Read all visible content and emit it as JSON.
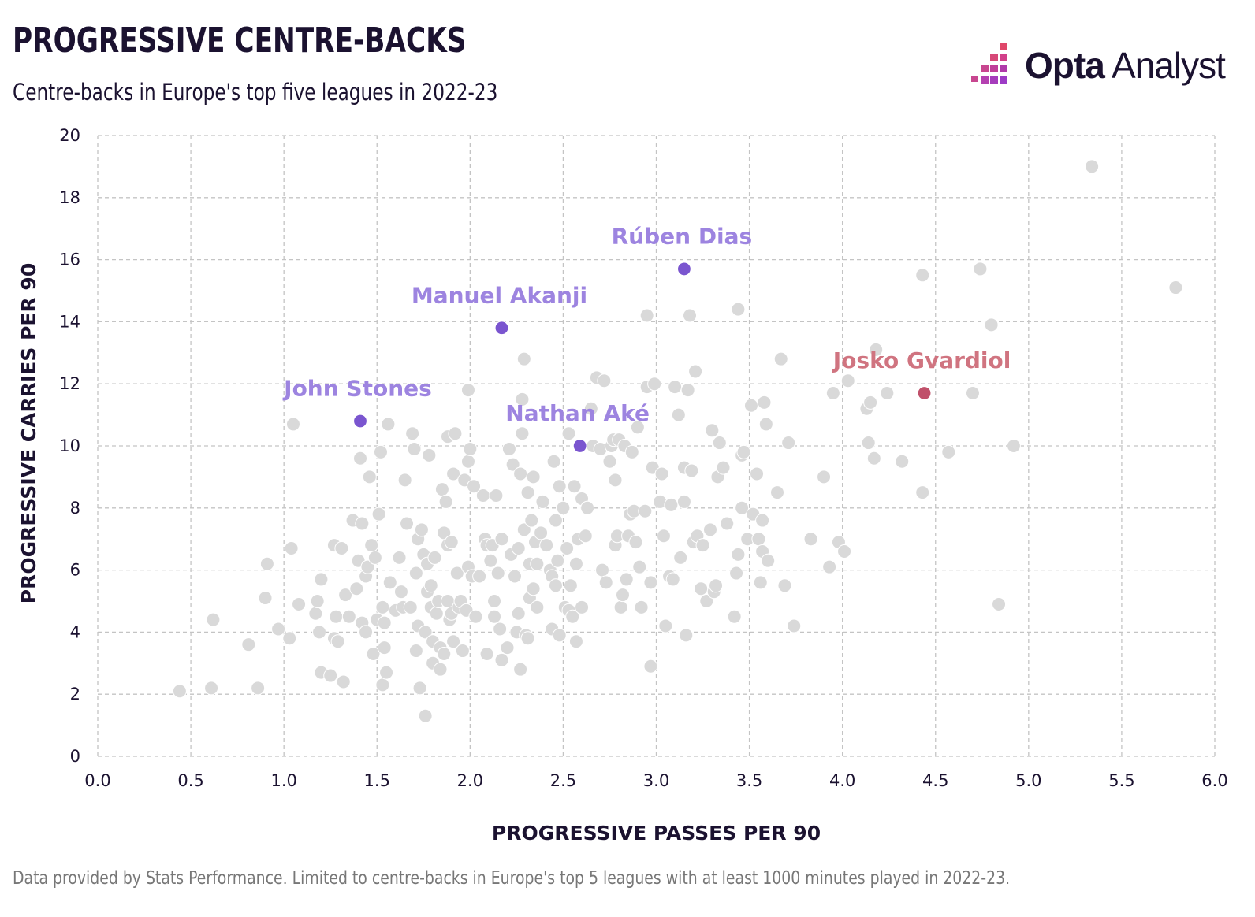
{
  "header": {
    "title": "PROGRESSIVE CENTRE-BACKS",
    "subtitle": "Centre-backs in Europe's top five leagues in 2022-23"
  },
  "logo": {
    "brand_bold": "Opta",
    "brand_light": "Analyst"
  },
  "footnote": "Data provided by Stats Performance. Limited to centre-backs in Europe's top 5 leagues with at least 1000 minutes played in 2022-23.",
  "colors": {
    "background_point": "#d9d9d9",
    "highlight_city": "#7a55cf",
    "highlight_city_label": "#9d84e0",
    "highlight_gvardiol": "#c0506a",
    "highlight_gvardiol_label": "#d07480",
    "grid": "#c4c4c4",
    "text": "#1b1230"
  },
  "chart_data": {
    "type": "scatter",
    "title": "PROGRESSIVE CENTRE-BACKS",
    "subtitle": "Centre-backs in Europe's top five leagues in 2022-23",
    "xlabel": "PROGRESSIVE PASSES PER 90",
    "ylabel": "PROGRESSIVE CARRIES PER 90",
    "xlim": [
      0.0,
      6.0
    ],
    "ylim": [
      0,
      20
    ],
    "x_ticks": [
      "0.0",
      "0.5",
      "1.0",
      "1.5",
      "2.0",
      "2.5",
      "3.0",
      "3.5",
      "4.0",
      "4.5",
      "5.0",
      "5.5",
      "6.0"
    ],
    "y_ticks": [
      "0",
      "2",
      "4",
      "6",
      "8",
      "10",
      "12",
      "14",
      "16",
      "18",
      "20"
    ],
    "grid": true,
    "highlighted": [
      {
        "name": "Rúben Dias",
        "x": 3.15,
        "y": 15.7,
        "group": "city"
      },
      {
        "name": "Manuel Akanji",
        "x": 2.17,
        "y": 13.8,
        "group": "city"
      },
      {
        "name": "John Stones",
        "x": 1.41,
        "y": 10.8,
        "group": "city"
      },
      {
        "name": "Nathan Aké",
        "x": 2.59,
        "y": 10.0,
        "group": "city"
      },
      {
        "name": "Josko Gvardiol",
        "x": 4.44,
        "y": 11.7,
        "group": "gvardiol"
      }
    ],
    "points": [
      [
        0.44,
        2.1
      ],
      [
        0.61,
        2.2
      ],
      [
        0.62,
        4.4
      ],
      [
        0.81,
        3.6
      ],
      [
        0.86,
        2.2
      ],
      [
        0.9,
        5.1
      ],
      [
        0.91,
        6.2
      ],
      [
        0.97,
        4.1
      ],
      [
        1.03,
        3.8
      ],
      [
        1.04,
        6.7
      ],
      [
        1.05,
        10.7
      ],
      [
        1.08,
        4.9
      ],
      [
        1.17,
        4.6
      ],
      [
        1.18,
        5.0
      ],
      [
        1.19,
        4.0
      ],
      [
        1.2,
        5.7
      ],
      [
        1.2,
        2.7
      ],
      [
        1.25,
        2.6
      ],
      [
        1.27,
        3.8
      ],
      [
        1.27,
        6.8
      ],
      [
        1.28,
        4.5
      ],
      [
        1.29,
        3.7
      ],
      [
        1.31,
        6.7
      ],
      [
        1.32,
        2.4
      ],
      [
        1.33,
        5.2
      ],
      [
        1.35,
        4.5
      ],
      [
        1.37,
        7.6
      ],
      [
        1.39,
        5.4
      ],
      [
        1.4,
        6.3
      ],
      [
        1.41,
        9.6
      ],
      [
        1.42,
        7.5
      ],
      [
        1.42,
        4.3
      ],
      [
        1.44,
        5.8
      ],
      [
        1.44,
        4.0
      ],
      [
        1.45,
        6.1
      ],
      [
        1.46,
        9.0
      ],
      [
        1.47,
        6.8
      ],
      [
        1.48,
        3.3
      ],
      [
        1.49,
        6.4
      ],
      [
        1.5,
        4.4
      ],
      [
        1.51,
        7.8
      ],
      [
        1.52,
        9.8
      ],
      [
        1.53,
        2.3
      ],
      [
        1.53,
        4.8
      ],
      [
        1.54,
        3.5
      ],
      [
        1.54,
        4.3
      ],
      [
        1.55,
        2.7
      ],
      [
        1.56,
        10.7
      ],
      [
        1.57,
        5.6
      ],
      [
        1.6,
        4.7
      ],
      [
        1.62,
        6.4
      ],
      [
        1.63,
        5.3
      ],
      [
        1.64,
        4.8
      ],
      [
        1.65,
        8.9
      ],
      [
        1.66,
        7.5
      ],
      [
        1.68,
        4.8
      ],
      [
        1.69,
        10.4
      ],
      [
        1.7,
        9.9
      ],
      [
        1.71,
        5.9
      ],
      [
        1.71,
        3.4
      ],
      [
        1.72,
        4.2
      ],
      [
        1.72,
        7.0
      ],
      [
        1.73,
        2.2
      ],
      [
        1.74,
        7.3
      ],
      [
        1.75,
        6.5
      ],
      [
        1.76,
        4.0
      ],
      [
        1.76,
        1.3
      ],
      [
        1.77,
        5.3
      ],
      [
        1.77,
        6.2
      ],
      [
        1.78,
        9.7
      ],
      [
        1.79,
        5.5
      ],
      [
        1.79,
        4.8
      ],
      [
        1.8,
        3.7
      ],
      [
        1.8,
        3.0
      ],
      [
        1.81,
        6.4
      ],
      [
        1.82,
        4.6
      ],
      [
        1.83,
        5.0
      ],
      [
        1.84,
        3.5
      ],
      [
        1.84,
        2.8
      ],
      [
        1.85,
        8.6
      ],
      [
        1.86,
        7.2
      ],
      [
        1.86,
        3.3
      ],
      [
        1.87,
        8.2
      ],
      [
        1.88,
        6.8
      ],
      [
        1.88,
        5.0
      ],
      [
        1.88,
        10.3
      ],
      [
        1.89,
        4.4
      ],
      [
        1.9,
        4.6
      ],
      [
        1.9,
        6.9
      ],
      [
        1.91,
        9.1
      ],
      [
        1.91,
        3.7
      ],
      [
        1.92,
        10.4
      ],
      [
        1.93,
        5.9
      ],
      [
        1.94,
        4.8
      ],
      [
        1.95,
        5.0
      ],
      [
        1.96,
        3.4
      ],
      [
        1.97,
        8.9
      ],
      [
        1.98,
        4.7
      ],
      [
        1.99,
        11.8
      ],
      [
        1.99,
        9.5
      ],
      [
        1.99,
        6.1
      ],
      [
        2.0,
        9.9
      ],
      [
        2.01,
        5.8
      ],
      [
        2.02,
        8.7
      ],
      [
        2.03,
        4.5
      ],
      [
        2.05,
        5.8
      ],
      [
        2.07,
        8.4
      ],
      [
        2.08,
        7.0
      ],
      [
        2.09,
        6.8
      ],
      [
        2.09,
        3.3
      ],
      [
        2.11,
        6.3
      ],
      [
        2.12,
        6.8
      ],
      [
        2.13,
        4.5
      ],
      [
        2.13,
        5.0
      ],
      [
        2.14,
        8.4
      ],
      [
        2.15,
        5.9
      ],
      [
        2.16,
        4.1
      ],
      [
        2.17,
        3.1
      ],
      [
        2.17,
        7.0
      ],
      [
        2.2,
        3.5
      ],
      [
        2.21,
        9.9
      ],
      [
        2.22,
        6.5
      ],
      [
        2.23,
        9.4
      ],
      [
        2.24,
        5.8
      ],
      [
        2.25,
        4.0
      ],
      [
        2.26,
        6.7
      ],
      [
        2.26,
        4.6
      ],
      [
        2.27,
        2.8
      ],
      [
        2.27,
        9.1
      ],
      [
        2.28,
        11.5
      ],
      [
        2.28,
        10.4
      ],
      [
        2.29,
        12.8
      ],
      [
        2.29,
        7.3
      ],
      [
        2.3,
        3.9
      ],
      [
        2.31,
        8.5
      ],
      [
        2.31,
        3.8
      ],
      [
        2.32,
        6.2
      ],
      [
        2.32,
        5.1
      ],
      [
        2.33,
        7.6
      ],
      [
        2.34,
        9.0
      ],
      [
        2.34,
        5.4
      ],
      [
        2.35,
        6.9
      ],
      [
        2.36,
        4.8
      ],
      [
        2.36,
        6.2
      ],
      [
        2.38,
        7.2
      ],
      [
        2.39,
        8.2
      ],
      [
        2.41,
        6.8
      ],
      [
        2.43,
        6.0
      ],
      [
        2.44,
        4.1
      ],
      [
        2.44,
        5.8
      ],
      [
        2.45,
        9.5
      ],
      [
        2.46,
        5.5
      ],
      [
        2.46,
        7.6
      ],
      [
        2.47,
        6.3
      ],
      [
        2.48,
        8.7
      ],
      [
        2.48,
        3.9
      ],
      [
        2.5,
        8.0
      ],
      [
        2.51,
        4.8
      ],
      [
        2.52,
        6.7
      ],
      [
        2.53,
        10.4
      ],
      [
        2.53,
        4.7
      ],
      [
        2.54,
        5.5
      ],
      [
        2.55,
        4.5
      ],
      [
        2.56,
        8.7
      ],
      [
        2.57,
        3.7
      ],
      [
        2.57,
        6.2
      ],
      [
        2.58,
        7.0
      ],
      [
        2.6,
        8.3
      ],
      [
        2.6,
        4.8
      ],
      [
        2.62,
        7.1
      ],
      [
        2.63,
        8.0
      ],
      [
        2.65,
        11.2
      ],
      [
        2.66,
        10.0
      ],
      [
        2.68,
        12.2
      ],
      [
        2.7,
        9.9
      ],
      [
        2.71,
        6.0
      ],
      [
        2.72,
        12.1
      ],
      [
        2.73,
        5.6
      ],
      [
        2.75,
        9.5
      ],
      [
        2.76,
        10.0
      ],
      [
        2.77,
        10.2
      ],
      [
        2.78,
        6.8
      ],
      [
        2.78,
        8.9
      ],
      [
        2.79,
        7.1
      ],
      [
        2.8,
        10.2
      ],
      [
        2.81,
        4.8
      ],
      [
        2.82,
        5.2
      ],
      [
        2.83,
        10.0
      ],
      [
        2.84,
        5.7
      ],
      [
        2.85,
        7.1
      ],
      [
        2.86,
        7.8
      ],
      [
        2.87,
        9.8
      ],
      [
        2.88,
        7.9
      ],
      [
        2.89,
        6.9
      ],
      [
        2.9,
        10.6
      ],
      [
        2.91,
        6.1
      ],
      [
        2.92,
        4.8
      ],
      [
        2.94,
        7.9
      ],
      [
        2.95,
        11.9
      ],
      [
        2.95,
        14.2
      ],
      [
        2.97,
        5.6
      ],
      [
        2.97,
        2.9
      ],
      [
        2.98,
        9.3
      ],
      [
        2.99,
        12.0
      ],
      [
        3.02,
        8.2
      ],
      [
        3.03,
        9.1
      ],
      [
        3.04,
        7.1
      ],
      [
        3.05,
        4.2
      ],
      [
        3.07,
        5.8
      ],
      [
        3.08,
        8.1
      ],
      [
        3.09,
        5.7
      ],
      [
        3.1,
        11.9
      ],
      [
        3.12,
        11.0
      ],
      [
        3.13,
        6.4
      ],
      [
        3.15,
        9.3
      ],
      [
        3.15,
        8.2
      ],
      [
        3.16,
        3.9
      ],
      [
        3.17,
        11.8
      ],
      [
        3.18,
        14.2
      ],
      [
        3.19,
        9.2
      ],
      [
        3.2,
        6.9
      ],
      [
        3.21,
        12.4
      ],
      [
        3.22,
        7.1
      ],
      [
        3.24,
        5.4
      ],
      [
        3.25,
        6.8
      ],
      [
        3.27,
        5.0
      ],
      [
        3.29,
        7.3
      ],
      [
        3.3,
        10.5
      ],
      [
        3.31,
        5.3
      ],
      [
        3.32,
        5.5
      ],
      [
        3.33,
        9.0
      ],
      [
        3.34,
        10.1
      ],
      [
        3.36,
        9.3
      ],
      [
        3.38,
        7.5
      ],
      [
        3.42,
        4.5
      ],
      [
        3.43,
        5.9
      ],
      [
        3.44,
        6.5
      ],
      [
        3.44,
        14.4
      ],
      [
        3.46,
        9.7
      ],
      [
        3.46,
        8.0
      ],
      [
        3.47,
        9.8
      ],
      [
        3.49,
        7.0
      ],
      [
        3.51,
        11.3
      ],
      [
        3.52,
        7.8
      ],
      [
        3.54,
        9.1
      ],
      [
        3.55,
        7.0
      ],
      [
        3.56,
        5.6
      ],
      [
        3.57,
        7.6
      ],
      [
        3.57,
        6.6
      ],
      [
        3.58,
        11.4
      ],
      [
        3.59,
        10.7
      ],
      [
        3.6,
        6.3
      ],
      [
        3.65,
        8.5
      ],
      [
        3.67,
        12.8
      ],
      [
        3.69,
        5.5
      ],
      [
        3.71,
        10.1
      ],
      [
        3.74,
        4.2
      ],
      [
        3.83,
        7.0
      ],
      [
        3.9,
        9.0
      ],
      [
        3.93,
        6.1
      ],
      [
        3.95,
        11.7
      ],
      [
        3.98,
        6.9
      ],
      [
        4.01,
        6.6
      ],
      [
        4.03,
        12.1
      ],
      [
        4.13,
        11.2
      ],
      [
        4.14,
        10.1
      ],
      [
        4.15,
        11.4
      ],
      [
        4.17,
        9.6
      ],
      [
        4.18,
        13.1
      ],
      [
        4.24,
        11.7
      ],
      [
        4.32,
        9.5
      ],
      [
        4.43,
        15.5
      ],
      [
        4.43,
        8.5
      ],
      [
        4.57,
        9.8
      ],
      [
        4.7,
        11.7
      ],
      [
        4.74,
        15.7
      ],
      [
        4.8,
        13.9
      ],
      [
        4.84,
        4.9
      ],
      [
        4.92,
        10.0
      ],
      [
        5.34,
        19.0
      ],
      [
        5.79,
        15.1
      ]
    ]
  }
}
